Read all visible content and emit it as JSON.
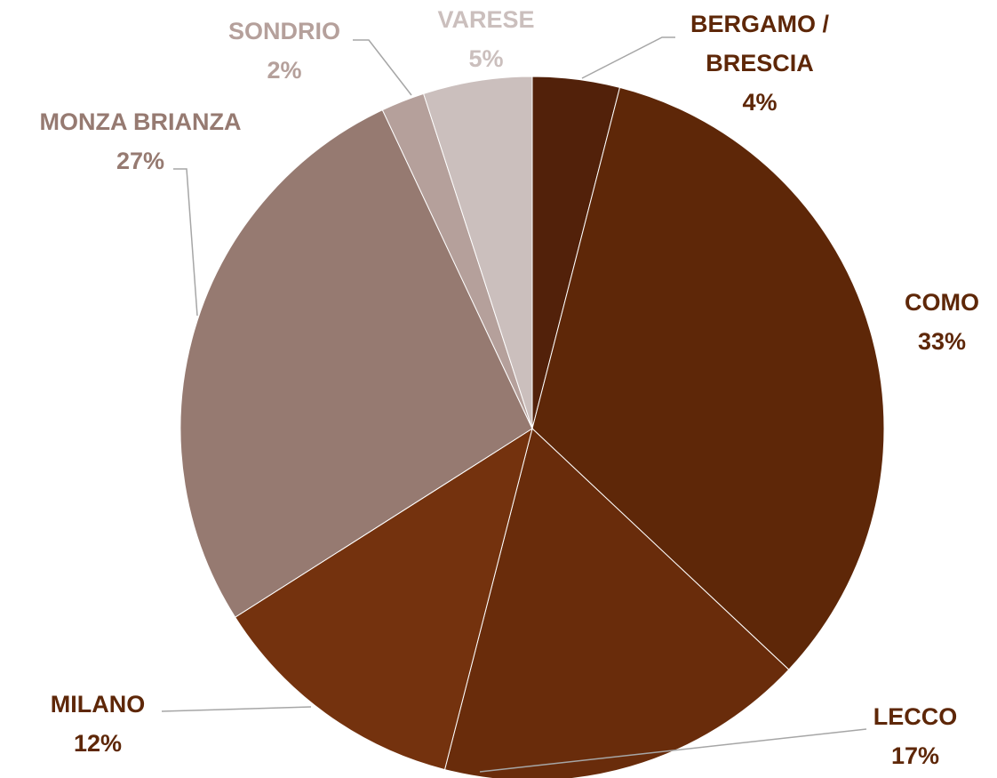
{
  "chart_data": {
    "type": "pie",
    "categories": [
      "BERGAMO / BRESCIA",
      "COMO",
      "LECCO",
      "MILANO",
      "MONZA BRIANZA",
      "SONDRIO",
      "VARESE"
    ],
    "values": [
      4,
      33,
      17,
      12,
      27,
      2,
      5
    ],
    "value_labels": [
      "4%",
      "33%",
      "17%",
      "12%",
      "27%",
      "2%",
      "5%"
    ],
    "colors": [
      "#52210a",
      "#5e2708",
      "#692c0b",
      "#74320e",
      "#967a71",
      "#b5a09b",
      "#cbbfbd"
    ],
    "label_colors": [
      "#5e2708",
      "#5e2708",
      "#5e2708",
      "#5e2708",
      "#967a71",
      "#b5a09b",
      "#cbbfbd"
    ]
  }
}
